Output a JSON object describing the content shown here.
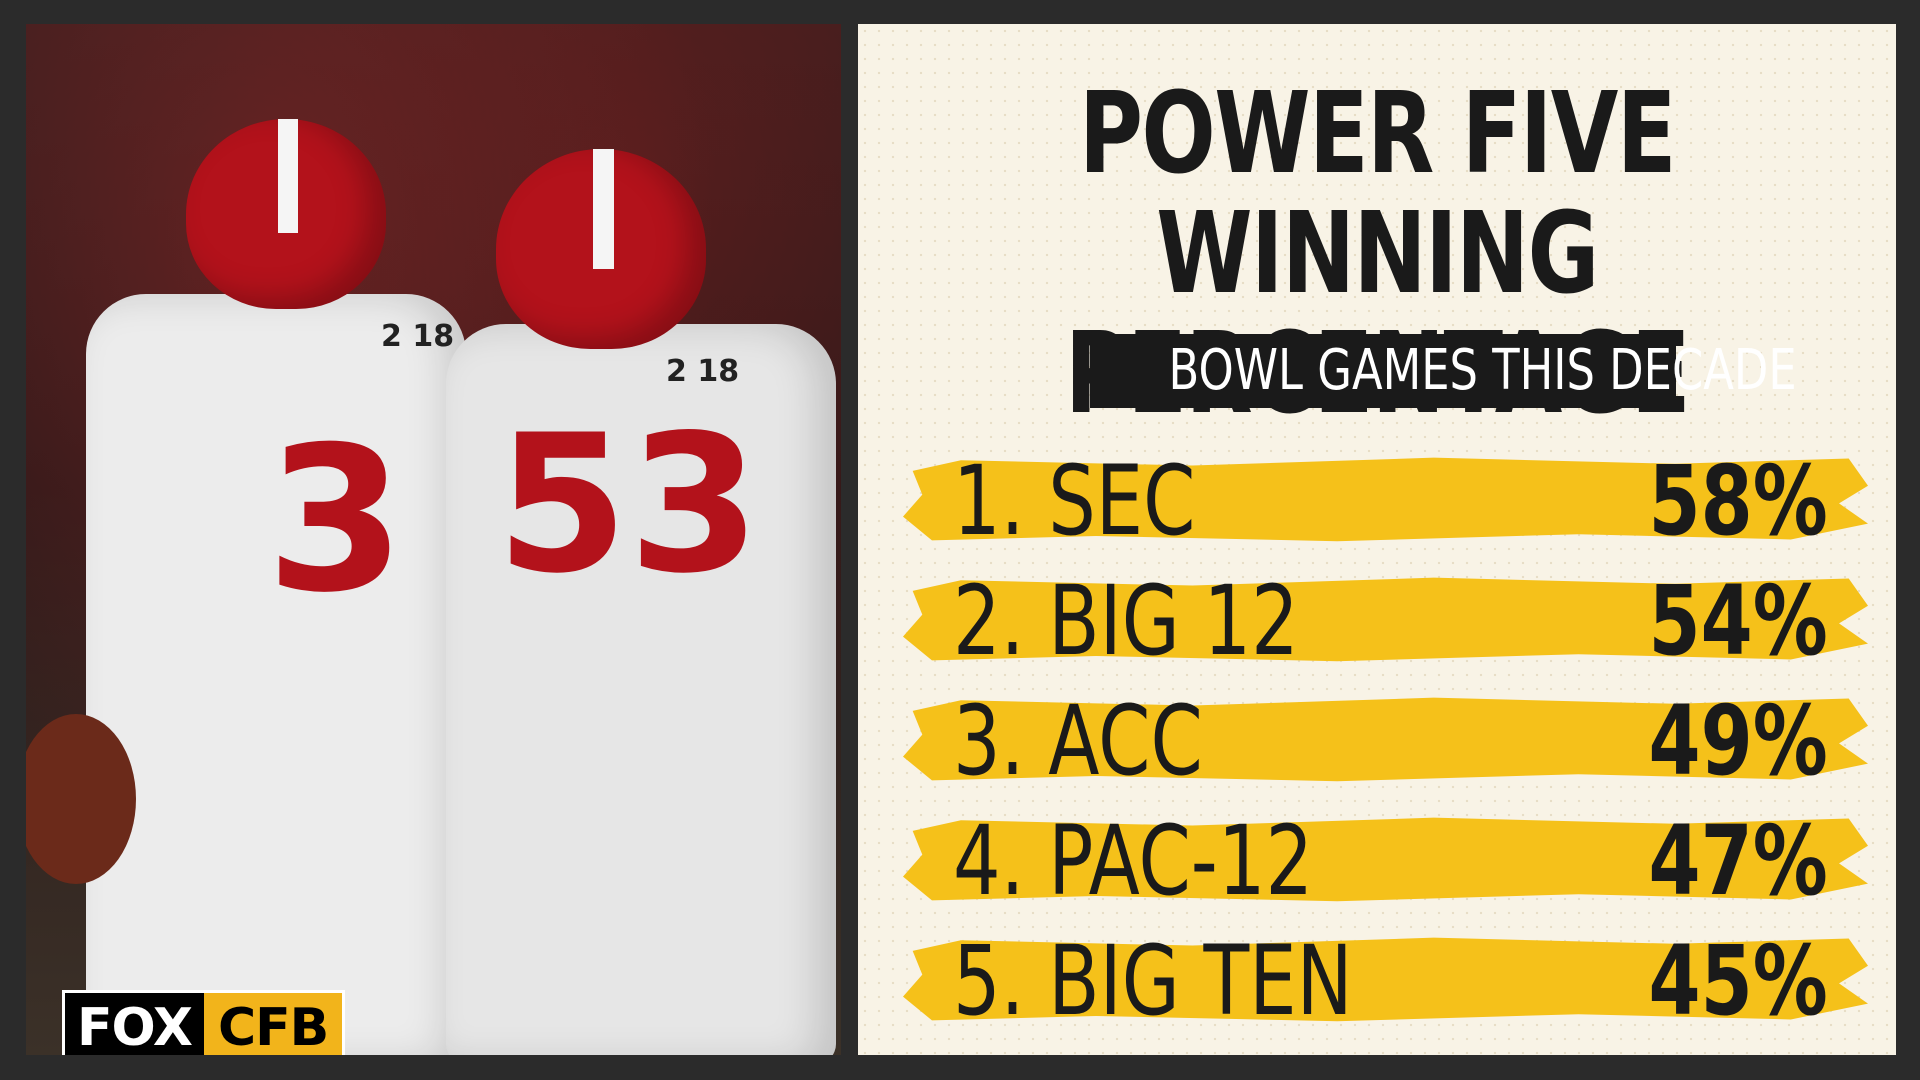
{
  "colors": {
    "background": "#2b2b2b",
    "panel": "#f8f3e6",
    "highlight": "#f5c11a",
    "text": "#1a1a1a",
    "crimson": "#b3121b"
  },
  "photo": {
    "player1_number": "3",
    "player2_number": "53",
    "patch1": "2 18",
    "patch2": "2 18"
  },
  "logo": {
    "left": "FOX",
    "right": "CFB"
  },
  "title": {
    "line1": "POWER FIVE",
    "line2": "WINNING PERCENTAGE"
  },
  "subtitle": "BOWL GAMES THIS DECADE",
  "rankings": [
    {
      "label": "1. SEC",
      "value": "58%"
    },
    {
      "label": "2. BIG 12",
      "value": "54%"
    },
    {
      "label": "3. ACC",
      "value": "49%"
    },
    {
      "label": "4. PAC-12",
      "value": "47%"
    },
    {
      "label": "5. BIG TEN",
      "value": "45%"
    }
  ]
}
